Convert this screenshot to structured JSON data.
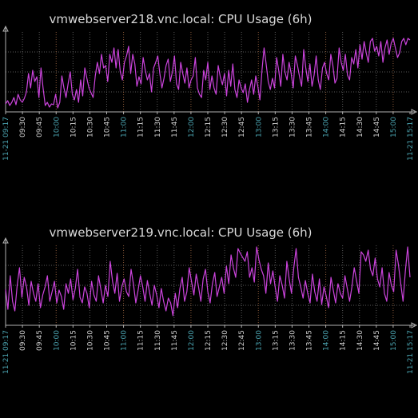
{
  "charts": [
    {
      "title": "vmwebserver218.vnc.local: CPU Usage (6h)"
    },
    {
      "title": "vmwebserver219.vnc.local: CPU Usage (6h)"
    }
  ],
  "colors": {
    "background": "#000000",
    "series": "#cc44dd",
    "grid": "#5a5a5a",
    "axis": "#b0b0b0",
    "hour_tick": "#4aa3b0"
  },
  "chart_data": [
    {
      "type": "line",
      "title": "vmwebserver218.vnc.local: CPU Usage (6h)",
      "xlabel": "",
      "ylabel": "",
      "x_tick_labels": [
        "11-21 09:17",
        "09:30",
        "09:45",
        "10:00",
        "10:15",
        "10:30",
        "10:45",
        "11:00",
        "11:15",
        "11:30",
        "11:45",
        "12:00",
        "12:15",
        "12:30",
        "12:45",
        "13:00",
        "13:15",
        "13:30",
        "13:45",
        "14:00",
        "14:15",
        "14:30",
        "14:45",
        "15:00",
        "11-21 15:17"
      ],
      "hour_ticks": [
        "10:00",
        "11:00",
        "12:00",
        "13:00",
        "14:00",
        "15:00"
      ],
      "ylim": [
        0,
        100
      ],
      "grid": true,
      "y": [
        10,
        14,
        8,
        12,
        18,
        9,
        22,
        15,
        12,
        17,
        25,
        48,
        30,
        52,
        38,
        44,
        18,
        55,
        30,
        8,
        12,
        6,
        10,
        9,
        22,
        5,
        12,
        45,
        30,
        18,
        35,
        50,
        22,
        15,
        28,
        12,
        40,
        20,
        55,
        42,
        30,
        24,
        18,
        45,
        62,
        48,
        72,
        55,
        58,
        38,
        72,
        62,
        80,
        55,
        78,
        50,
        40,
        62,
        70,
        82,
        48,
        72,
        60,
        32,
        44,
        35,
        68,
        52,
        40,
        48,
        25,
        55,
        62,
        70,
        48,
        30,
        42,
        58,
        66,
        38,
        50,
        70,
        35,
        28,
        62,
        48,
        36,
        55,
        30,
        40,
        45,
        68,
        30,
        22,
        18,
        52,
        40,
        62,
        28,
        45,
        30,
        22,
        58,
        44,
        34,
        48,
        20,
        52,
        32,
        60,
        28,
        18,
        40,
        30,
        24,
        35,
        12,
        28,
        40,
        22,
        45,
        32,
        15,
        52,
        80,
        60,
        38,
        28,
        42,
        30,
        68,
        52,
        32,
        72,
        50,
        40,
        62,
        48,
        30,
        70,
        58,
        44,
        32,
        78,
        55,
        38,
        60,
        32,
        46,
        70,
        40,
        28,
        55,
        62,
        48,
        40,
        72,
        58,
        36,
        42,
        80,
        62,
        52,
        72,
        46,
        40,
        68,
        60,
        78,
        55,
        84,
        66,
        88,
        74,
        62,
        88,
        92,
        76,
        82,
        70,
        88,
        62,
        80,
        90,
        72,
        86,
        92,
        80,
        68,
        74,
        88,
        92,
        84,
        92,
        90
      ]
    },
    {
      "type": "line",
      "title": "vmwebserver219.vnc.local: CPU Usage (6h)",
      "xlabel": "",
      "ylabel": "",
      "x_tick_labels": [
        "11-21 09:17",
        "09:30",
        "09:45",
        "10:00",
        "10:15",
        "10:30",
        "10:45",
        "11:00",
        "11:15",
        "11:30",
        "11:45",
        "12:00",
        "12:15",
        "12:30",
        "12:45",
        "13:00",
        "13:15",
        "13:30",
        "13:45",
        "14:00",
        "14:15",
        "14:30",
        "14:45",
        "15:00",
        "11-21 15:17"
      ],
      "hour_ticks": [
        "10:00",
        "11:00",
        "12:00",
        "13:00",
        "14:00",
        "15:00"
      ],
      "ylim": [
        0,
        100
      ],
      "grid": true,
      "y": [
        45,
        20,
        62,
        30,
        18,
        50,
        72,
        35,
        60,
        48,
        25,
        55,
        40,
        30,
        52,
        22,
        38,
        48,
        62,
        30,
        42,
        55,
        28,
        44,
        36,
        20,
        52,
        40,
        58,
        32,
        46,
        70,
        35,
        28,
        48,
        40,
        22,
        55,
        38,
        30,
        62,
        45,
        28,
        50,
        36,
        80,
        55,
        40,
        65,
        30,
        48,
        58,
        42,
        36,
        70,
        52,
        28,
        44,
        62,
        48,
        30,
        56,
        40,
        25,
        50,
        38,
        22,
        46,
        30,
        18,
        34,
        28,
        12,
        40,
        22,
        46,
        60,
        30,
        42,
        72,
        55,
        38,
        64,
        48,
        30,
        58,
        70,
        42,
        28,
        52,
        66,
        36,
        48,
        60,
        40,
        74,
        52,
        88,
        72,
        60,
        96,
        90,
        85,
        80,
        92,
        60,
        72,
        54,
        98,
        82,
        70,
        62,
        40,
        78,
        52,
        68,
        48,
        30,
        62,
        50,
        34,
        80,
        58,
        40,
        72,
        96,
        60,
        48,
        34,
        56,
        40,
        28,
        64,
        42,
        30,
        58,
        26,
        48,
        36,
        22,
        60,
        44,
        28,
        52,
        40,
        34,
        62,
        46,
        30,
        48,
        72,
        56,
        40,
        92,
        88,
        80,
        94,
        70,
        62,
        84,
        58,
        48,
        72,
        40,
        30,
        66,
        50,
        42,
        94,
        76,
        52,
        30,
        68,
        98,
        60
      ]
    }
  ]
}
